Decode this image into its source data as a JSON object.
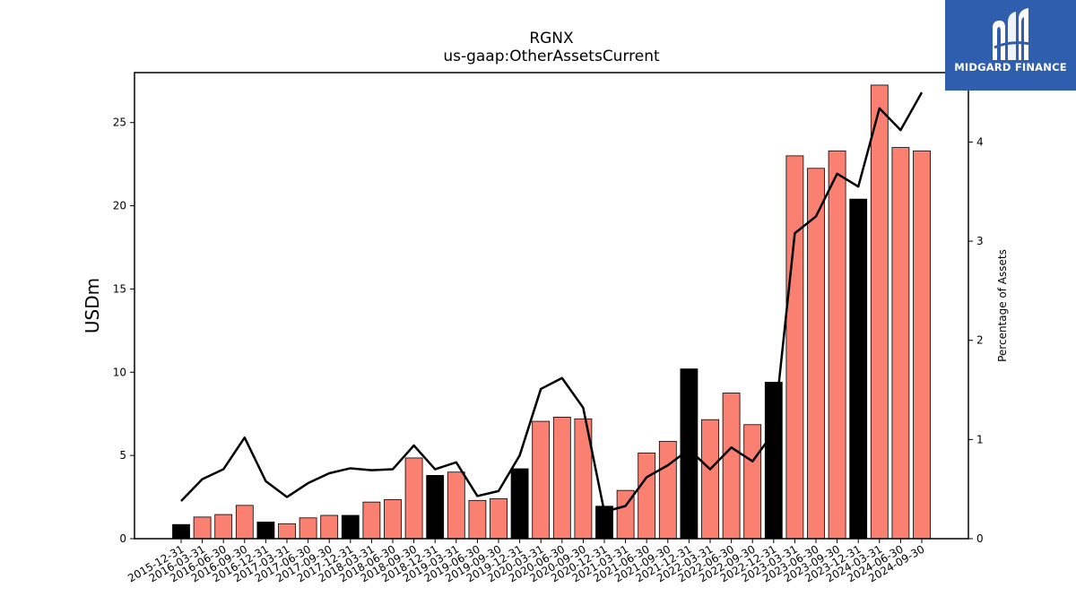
{
  "chart_data": {
    "type": "bar",
    "title": "RGNX",
    "subtitle": "us-gaap:OtherAssetsCurrent",
    "ylabel": "USDm",
    "y2label": "Percentage of Assets",
    "ylim": [
      0,
      28
    ],
    "y2lim": [
      0,
      4.7
    ],
    "yticks": [
      0,
      5,
      10,
      15,
      20,
      25
    ],
    "y2ticks": [
      0,
      1,
      2,
      3,
      4
    ],
    "categories": [
      "2015-12-31",
      "2016-03-31",
      "2016-06-30",
      "2016-09-30",
      "2016-12-31",
      "2017-03-31",
      "2017-06-30",
      "2017-09-30",
      "2017-12-31",
      "2018-03-31",
      "2018-06-30",
      "2018-09-30",
      "2018-12-31",
      "2019-03-31",
      "2019-06-30",
      "2019-09-30",
      "2019-12-31",
      "2020-03-31",
      "2020-06-30",
      "2020-09-30",
      "2020-12-31",
      "2021-03-31",
      "2021-06-30",
      "2021-09-30",
      "2021-12-31",
      "2022-03-31",
      "2022-06-30",
      "2022-09-30",
      "2022-12-31",
      "2023-03-31",
      "2023-06-30",
      "2023-09-30",
      "2023-12-31",
      "2024-03-31",
      "2024-06-30",
      "2024-09-30"
    ],
    "series": [
      {
        "type": "bar",
        "values": [
          0.85,
          1.3,
          1.45,
          2.0,
          1.0,
          0.9,
          1.25,
          1.4,
          1.4,
          2.2,
          2.35,
          4.85,
          3.8,
          4.0,
          2.3,
          2.4,
          4.2,
          7.05,
          7.3,
          7.2,
          1.95,
          2.9,
          5.15,
          5.85,
          10.2,
          7.15,
          8.75,
          6.85,
          9.4,
          23.0,
          22.25,
          23.3,
          20.4,
          27.25,
          23.5,
          23.3
        ],
        "year_end_color": "#000000",
        "quarter_color": "#fa8072"
      },
      {
        "type": "line",
        "axis": "right",
        "values": [
          0.38,
          0.6,
          0.7,
          1.02,
          0.58,
          0.42,
          0.56,
          0.66,
          0.71,
          0.69,
          0.7,
          0.94,
          0.7,
          0.77,
          0.43,
          0.48,
          0.84,
          1.51,
          1.62,
          1.32,
          0.27,
          0.33,
          0.62,
          0.74,
          0.9,
          0.7,
          0.92,
          0.78,
          1.07,
          3.08,
          3.25,
          3.68,
          3.55,
          4.34,
          4.12,
          4.5
        ],
        "color": "#000000"
      }
    ],
    "grid": false,
    "legend": "none"
  },
  "logo": {
    "brand": "MIDGARD FINANCE",
    "icon": "midgard-logo-icon",
    "background": "#2f5eae"
  }
}
